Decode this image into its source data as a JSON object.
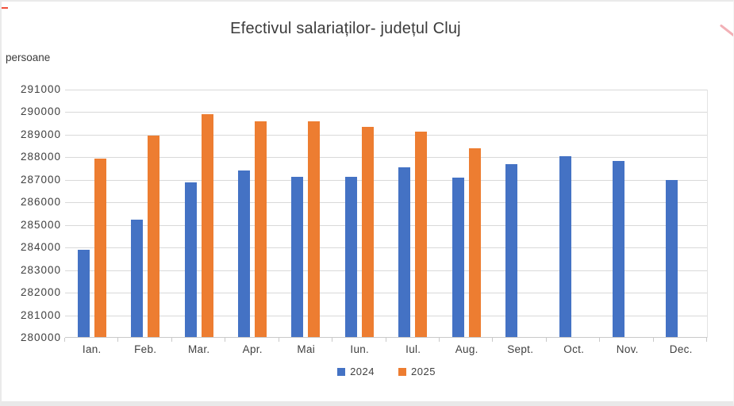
{
  "chart_data": {
    "type": "bar",
    "title": "Efectivul salariaților- județul Cluj",
    "ylabel": "persoane",
    "xlabel": "",
    "categories": [
      "Ian.",
      "Feb.",
      "Mar.",
      "Apr.",
      "Mai",
      "Iun.",
      "Iul.",
      "Aug.",
      "Sept.",
      "Oct.",
      "Nov.",
      "Dec."
    ],
    "series": [
      {
        "name": "2024",
        "color": "#4472C4",
        "values": [
          283900,
          285250,
          286900,
          287400,
          287150,
          287150,
          287550,
          287100,
          287700,
          288050,
          287850,
          287000
        ]
      },
      {
        "name": "2025",
        "color": "#ED7D31",
        "values": [
          287950,
          288950,
          289900,
          289600,
          289580,
          289350,
          289150,
          288400,
          null,
          null,
          null,
          null
        ]
      }
    ],
    "ylim": [
      280000,
      291000
    ],
    "ytick_step": 1000,
    "grid": true,
    "legend_position": "bottom"
  },
  "colors": {
    "series_2024": "#4472C4",
    "series_2025": "#ED7D31",
    "gridline": "#D9D9D9",
    "axis_line": "#C9C9C9",
    "text": "#3F3F3F"
  }
}
